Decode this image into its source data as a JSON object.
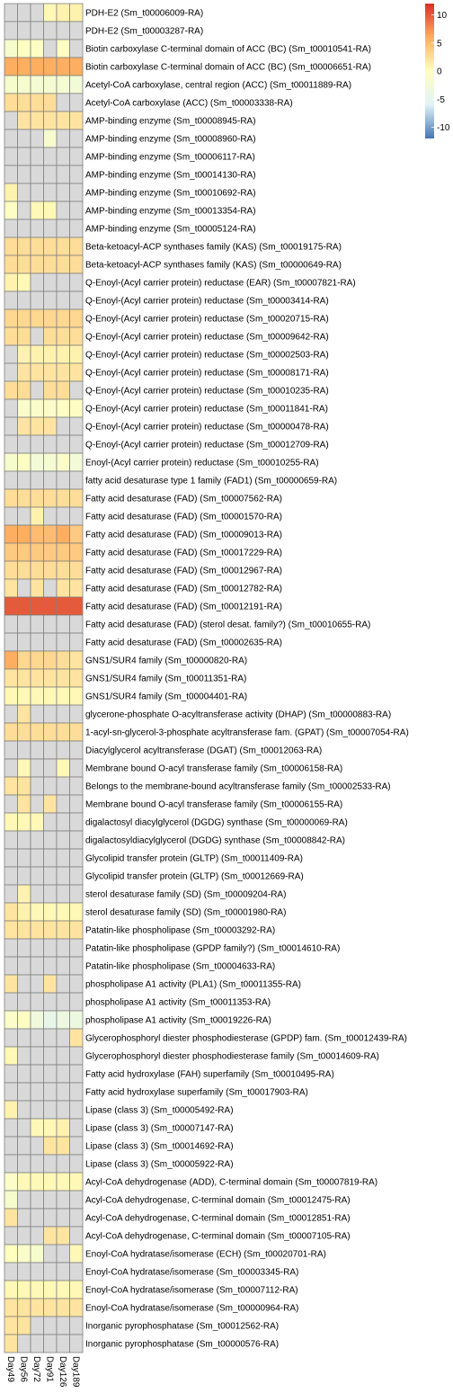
{
  "chart_data": {
    "type": "heatmap",
    "columns": [
      "Day49",
      "Day56",
      "Day72",
      "Day91",
      "Day126",
      "Day189"
    ],
    "rows": [
      "PDH-E2 (Sm_t00006009-RA)",
      "PDH-E2 (Sm_t00003287-RA)",
      "Biotin carboxylase C-terminal domain of ACC (BC) (Sm_t00010541-RA)",
      "Biotin carboxylase C-terminal domain of ACC (BC) (Sm_t00006651-RA)",
      "Acetyl-CoA carboxylase, central region (ACC) (Sm_t00011889-RA)",
      "Acetyl-CoA carboxylase (ACC) (Sm_t00003338-RA)",
      "AMP-binding enzyme (Sm_t00008945-RA)",
      "AMP-binding enzyme (Sm_t00008960-RA)",
      "AMP-binding enzyme (Sm_t00006117-RA)",
      "AMP-binding enzyme (Sm_t00014130-RA)",
      "AMP-binding enzyme (Sm_t00010692-RA)",
      "AMP-binding enzyme (Sm_t00013354-RA)",
      "AMP-binding enzyme (Sm_t00005124-RA)",
      "Beta-ketoacyl-ACP synthases family (KAS) (Sm_t00019175-RA)",
      "Beta-ketoacyl-ACP synthases family (KAS) (Sm_t00000649-RA)",
      "Q-Enoyl-(Acyl carrier protein) reductase (EAR) (Sm_t00007821-RA)",
      "Q-Enoyl-(Acyl carrier protein) reductase (Sm_t00003414-RA)",
      "Q-Enoyl-(Acyl carrier protein) reductase (Sm_t00020715-RA)",
      "Q-Enoyl-(Acyl carrier protein) reductase (Sm_t00009642-RA)",
      "Q-Enoyl-(Acyl carrier protein) reductase (Sm_t00002503-RA)",
      "Q-Enoyl-(Acyl carrier protein) reductase (Sm_t00008171-RA)",
      "Q-Enoyl-(Acyl carrier protein) reductase (Sm_t00010235-RA)",
      "Q-Enoyl-(Acyl carrier protein) reductase (Sm_t00011841-RA)",
      "Q-Enoyl-(Acyl carrier protein) reductase (Sm_t00000478-RA)",
      "Q-Enoyl-(Acyl carrier protein) reductase (Sm_t00012709-RA)",
      "Enoyl-(Acyl carrier protein) reductase (Sm_t00010255-RA)",
      "fatty acid desaturase type 1 family (FAD1) (Sm_t00000659-RA)",
      "Fatty acid desaturase (FAD) (Sm_t00007562-RA)",
      "Fatty acid desaturase (FAD) (Sm_t00001570-RA)",
      "Fatty acid desaturase (FAD) (Sm_t00009013-RA)",
      "Fatty acid desaturase (FAD) (Sm_t00017229-RA)",
      "Fatty acid desaturase (FAD) (Sm_t00012967-RA)",
      "Fatty acid desaturase (FAD) (Sm_t00012782-RA)",
      "Fatty acid desaturase (FAD) (Sm_t00012191-RA)",
      "Fatty acid desaturase (FAD) (sterol desat. family?) (Sm_t00010655-RA)",
      "Fatty acid desaturase (FAD) (Sm_t00002635-RA)",
      "GNS1/SUR4 family (Sm_t00000820-RA)",
      "GNS1/SUR4 family (Sm_t00011351-RA)",
      "GNS1/SUR4 family (Sm_t00004401-RA)",
      "glycerone-phosphate O-acyltransferase activity (DHAP) (Sm_t00000883-RA)",
      "1-acyl-sn-glycerol-3-phosphate acyltransferase fam. (GPAT) (Sm_t00007054-RA)",
      "Diacylglycerol acyltransferase (DGAT) (Sm_t00012063-RA)",
      "Membrane bound O-acyl transferase family (Sm_t00006158-RA)",
      "Belongs to the membrane-bound acyltransferase family (Sm_t00002533-RA)",
      "Membrane bound O-acyl transferase family (Sm_t00006155-RA)",
      "digalactosyl diacylglycerol (DGDG) synthase (Sm_t00000069-RA)",
      "digalactosyldiacylglycerol (DGDG) synthase (Sm_t00008842-RA)",
      "Glycolipid transfer protein (GLTP) (Sm_t00011409-RA)",
      "Glycolipid transfer protein (GLTP) (Sm_t00012669-RA)",
      "sterol desaturase family (SD) (Sm_t00009204-RA)",
      "sterol desaturase family (SD) (Sm_t00001980-RA)",
      "Patatin-like phospholipase (Sm_t00003292-RA)",
      "Patatin-like phospholipase (GPDP family?) (Sm_t00014610-RA)",
      "Patatin-like phospholipase (Sm_t00004633-RA)",
      "phospholipase A1 activity (PLA1) (Sm_t00011355-RA)",
      "phospholipase A1 activity (Sm_t00011353-RA)",
      "phospholipase A1 activity (Sm_t00019226-RA)",
      "Glycerophosphoryl diester phosphodiesterase (GPDP) fam. (Sm_t00012439-RA)",
      "Glycerophosphoryl diester phosphodiesterase family (Sm_t00014609-RA)",
      "Fatty acid hydroxylase (FAH) superfamily (Sm_t00010495-RA)",
      "Fatty acid hydroxylase superfamily (Sm_t00017903-RA)",
      "Lipase (class 3) (Sm_t00005492-RA)",
      "Lipase (class 3) (Sm_t00007147-RA)",
      "Lipase (class 3) (Sm_t00014692-RA)",
      "Lipase (class 3) (Sm_t00005922-RA)",
      "Acyl-CoA dehydrogenase (ADD), C-terminal domain (Sm_t00007819-RA)",
      "Acyl-CoA dehydrogenase, C-terminal domain (Sm_t00012475-RA)",
      "Acyl-CoA dehydrogenase, C-terminal domain (Sm_t00012851-RA)",
      "Acyl-CoA dehydrogenase, C-terminal domain (Sm_t00007105-RA)",
      "Enoyl-CoA hydratase/isomerase (ECH) (Sm_t00020701-RA)",
      "Enoyl-CoA hydratase/isomerase (Sm_t00003345-RA)",
      "Enoyl-CoA hydratase/isomerase (Sm_t00007112-RA)",
      "Enoyl-CoA hydratase/isomerase (Sm_t00000964-RA)",
      "Inorganic pyrophosphatase (Sm_t00012562-RA)",
      "Inorganic pyrophosphatase (Sm_t00000576-RA)"
    ],
    "values": [
      [
        null,
        null,
        null,
        0.5,
        1,
        1
      ],
      [
        null,
        null,
        null,
        null,
        null,
        null
      ],
      [
        -1.5,
        -0.5,
        -0.5,
        null,
        -0.5,
        null
      ],
      [
        6,
        6,
        6,
        6,
        6,
        6
      ],
      [
        -1.5,
        -1.5,
        -2,
        -2,
        -2,
        -2.5
      ],
      [
        2.5,
        2.5,
        2.5,
        2.5,
        null,
        null
      ],
      [
        null,
        2,
        2,
        2,
        2,
        2
      ],
      [
        null,
        null,
        null,
        -1.5,
        null,
        null
      ],
      [
        null,
        null,
        null,
        null,
        null,
        null
      ],
      [
        null,
        null,
        null,
        null,
        null,
        null
      ],
      [
        1,
        null,
        null,
        null,
        null,
        null
      ],
      [
        -0.5,
        null,
        0.5,
        0.5,
        null,
        null
      ],
      [
        null,
        null,
        null,
        null,
        null,
        null
      ],
      [
        2.5,
        2.5,
        2.5,
        2.5,
        2.5,
        2.5
      ],
      [
        2.5,
        2.5,
        2.5,
        2.5,
        2.5,
        2.5
      ],
      [
        1,
        0.5,
        null,
        null,
        null,
        null
      ],
      [
        null,
        null,
        null,
        null,
        null,
        null
      ],
      [
        3,
        3,
        3,
        3,
        3,
        3
      ],
      [
        2.5,
        2.5,
        null,
        2.5,
        2.5,
        2.5
      ],
      [
        null,
        1,
        1,
        1,
        1,
        1
      ],
      [
        null,
        2,
        2,
        2,
        2,
        2
      ],
      [
        2.5,
        2.5,
        null,
        2.5,
        2.5,
        null
      ],
      [
        null,
        -1,
        -1,
        -1,
        -0.5,
        -0.5
      ],
      [
        null,
        2,
        2,
        2,
        null,
        null
      ],
      [
        null,
        null,
        null,
        null,
        null,
        null
      ],
      [
        -1.5,
        -0.5,
        -2.5,
        -2,
        -1,
        -2.5
      ],
      [
        null,
        null,
        null,
        null,
        null,
        null
      ],
      [
        2.5,
        2.5,
        2.5,
        2.5,
        2.5,
        2.5
      ],
      [
        null,
        null,
        1,
        null,
        null,
        null
      ],
      [
        6,
        6,
        5,
        5,
        6,
        4
      ],
      [
        4,
        4,
        4,
        4,
        4,
        4
      ],
      [
        2.5,
        2.5,
        2.5,
        2.5,
        2.5,
        2.5
      ],
      [
        2,
        null,
        2,
        null,
        2,
        2
      ],
      [
        10,
        10,
        10,
        10,
        10,
        10
      ],
      [
        null,
        null,
        null,
        null,
        null,
        null
      ],
      [
        null,
        null,
        null,
        null,
        null,
        null
      ],
      [
        6,
        3,
        3,
        3,
        2.5,
        2
      ],
      [
        2,
        2,
        2,
        2,
        2,
        2
      ],
      [
        0.5,
        0.5,
        0.5,
        0.5,
        0.5,
        0.5
      ],
      [
        null,
        2,
        null,
        null,
        null,
        null
      ],
      [
        2.5,
        2.5,
        2.5,
        2.5,
        2.5,
        2.5
      ],
      [
        null,
        null,
        null,
        null,
        null,
        null
      ],
      [
        null,
        0.5,
        null,
        null,
        0.5,
        null
      ],
      [
        2,
        2,
        null,
        null,
        null,
        null
      ],
      [
        null,
        2,
        null,
        2,
        null,
        null
      ],
      [
        0.5,
        0.5,
        0.5,
        null,
        null,
        null
      ],
      [
        null,
        null,
        null,
        null,
        null,
        null
      ],
      [
        null,
        null,
        null,
        null,
        null,
        null
      ],
      [
        null,
        null,
        null,
        null,
        null,
        null
      ],
      [
        null,
        1,
        null,
        null,
        null,
        null
      ],
      [
        2,
        1,
        0.5,
        0.5,
        0.5,
        0.5
      ],
      [
        2,
        2,
        2,
        2,
        2,
        2
      ],
      [
        null,
        null,
        null,
        null,
        null,
        null
      ],
      [
        null,
        null,
        null,
        null,
        null,
        null
      ],
      [
        2,
        null,
        null,
        2,
        null,
        null
      ],
      [
        null,
        null,
        null,
        null,
        null,
        null
      ],
      [
        -1,
        -0.5,
        -3,
        -4.5,
        -3.5,
        -3.5
      ],
      [
        null,
        null,
        null,
        null,
        null,
        2
      ],
      [
        0.5,
        null,
        null,
        null,
        null,
        null
      ],
      [
        null,
        null,
        null,
        null,
        null,
        null
      ],
      [
        null,
        null,
        null,
        null,
        null,
        null
      ],
      [
        1,
        null,
        null,
        null,
        null,
        null
      ],
      [
        null,
        null,
        0.5,
        0.5,
        1,
        null
      ],
      [
        null,
        null,
        null,
        2,
        2,
        null
      ],
      [
        null,
        null,
        null,
        null,
        null,
        null
      ],
      [
        -1,
        0.5,
        0.5,
        0.5,
        0.5,
        0.5
      ],
      [
        -1.5,
        null,
        null,
        null,
        null,
        null
      ],
      [
        2,
        null,
        null,
        null,
        null,
        null
      ],
      [
        null,
        null,
        null,
        2,
        2,
        null
      ],
      [
        0,
        -1,
        -1.5,
        null,
        null,
        0.5
      ],
      [
        null,
        null,
        null,
        null,
        null,
        null
      ],
      [
        0.5,
        0.5,
        0.5,
        0.5,
        0.5,
        0.5
      ],
      [
        2,
        2,
        2,
        2,
        2,
        2
      ],
      [
        2,
        2,
        null,
        null,
        null,
        null
      ],
      [
        2,
        null,
        null,
        null,
        null,
        null
      ]
    ],
    "legend": {
      "ticks": [
        10,
        5,
        0,
        -5,
        -10
      ],
      "range": [
        -12,
        12
      ]
    },
    "missing_color": "#d9d9d9",
    "colors": {
      "low": "#4575b4",
      "mid_low": "#e0f3f8",
      "mid": "#ffffbf",
      "mid_high": "#fdae61",
      "high": "#d73027",
      "border": "#808080"
    }
  }
}
